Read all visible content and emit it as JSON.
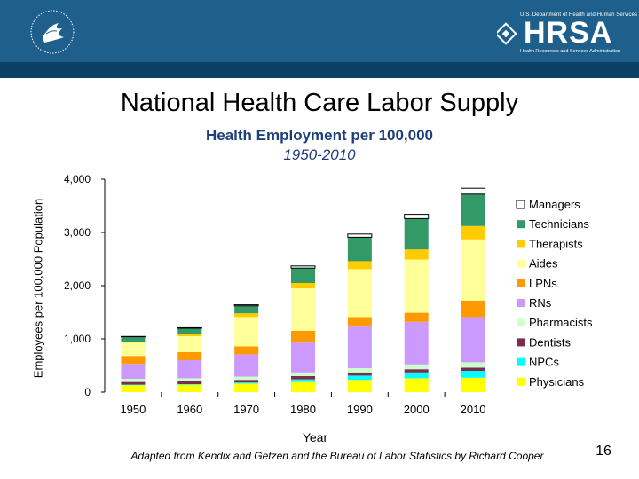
{
  "header": {
    "agency_top": "U.S. Department of Health and Human Services",
    "agency_word": "HRSA",
    "agency_bottom": "Health Resources and Services Administration"
  },
  "slide": {
    "title": "National Health Care Labor Supply",
    "number": "16",
    "source": "Adapted from Kendix and Getzen and the Bureau of Labor Statistics by Richard Cooper"
  },
  "chart_data": {
    "type": "bar",
    "stacked": true,
    "title": "Health Employment per 100,000",
    "subtitle": "1950-2010",
    "xlabel": "Year",
    "ylabel": "Employees per 100,000 Population",
    "ylim": [
      0,
      4000
    ],
    "yticks": [
      "4,000",
      "3,000",
      "2,000",
      "1,000",
      "0"
    ],
    "ytick_values": [
      4000,
      3000,
      2000,
      1000,
      0
    ],
    "categories": [
      "1950",
      "1960",
      "1970",
      "1980",
      "1990",
      "2000",
      "2010"
    ],
    "legend_position": "right",
    "series": [
      {
        "name": "Physicians",
        "color": "#ffff00",
        "values": [
          130,
          140,
          160,
          190,
          230,
          260,
          270
        ]
      },
      {
        "name": "NPCs",
        "color": "#00ffff",
        "values": [
          10,
          10,
          20,
          50,
          80,
          110,
          130
        ]
      },
      {
        "name": "Dentists",
        "color": "#7b2d4f",
        "values": [
          50,
          50,
          50,
          60,
          60,
          60,
          60
        ]
      },
      {
        "name": "Pharmacists",
        "color": "#ccffcc",
        "values": [
          60,
          60,
          60,
          70,
          80,
          90,
          100
        ]
      },
      {
        "name": "RNs",
        "color": "#cc99ff",
        "values": [
          280,
          340,
          420,
          560,
          780,
          800,
          850
        ]
      },
      {
        "name": "LPNs",
        "color": "#ff9900",
        "values": [
          150,
          150,
          150,
          220,
          180,
          170,
          310
        ]
      },
      {
        "name": "Aides",
        "color": "#ffff99",
        "values": [
          250,
          300,
          550,
          800,
          900,
          1000,
          1150
        ]
      },
      {
        "name": "Therapists",
        "color": "#ffcc00",
        "values": [
          20,
          40,
          70,
          100,
          150,
          190,
          250
        ]
      },
      {
        "name": "Technicians",
        "color": "#339966",
        "values": [
          90,
          110,
          140,
          280,
          450,
          580,
          600
        ]
      },
      {
        "name": "Managers",
        "color": "#ffffff",
        "values": [
          5,
          10,
          20,
          40,
          60,
          80,
          110
        ]
      }
    ]
  }
}
